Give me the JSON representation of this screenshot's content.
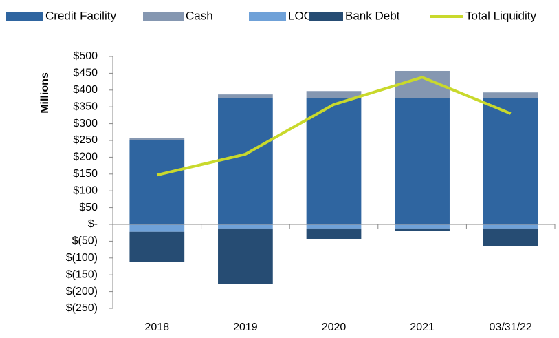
{
  "chart_data": {
    "type": "bar",
    "y_label": "Millions",
    "categories": [
      "2018",
      "2019",
      "2020",
      "2021",
      "03/31/22"
    ],
    "series": [
      {
        "name": "Credit Facility",
        "type": "bar",
        "color": "#2f65a0",
        "values": [
          250,
          375,
          375,
          375,
          375
        ]
      },
      {
        "name": "Cash",
        "type": "bar",
        "color": "#8597b1",
        "values": [
          7,
          12,
          22,
          82,
          18
        ]
      },
      {
        "name": "LOC",
        "type": "bar",
        "color": "#6fa1d8",
        "values": [
          -22,
          -12,
          -12,
          -12,
          -12
        ]
      },
      {
        "name": "Bank Debt",
        "type": "bar",
        "color": "#264c73",
        "values": [
          -90,
          -166,
          -31,
          -8,
          -52
        ]
      },
      {
        "name": "Total Liquidity",
        "type": "line",
        "color": "#c9d92c",
        "values": [
          147,
          209,
          357,
          438,
          330
        ]
      }
    ],
    "ylim": [
      -250,
      500
    ],
    "yticks": [
      {
        "value": -250,
        "label": "$(250)"
      },
      {
        "value": -200,
        "label": "$(200)"
      },
      {
        "value": -150,
        "label": "$(150)"
      },
      {
        "value": -100,
        "label": "$(100)"
      },
      {
        "value": -50,
        "label": "$(50)"
      },
      {
        "value": 0,
        "label": "$-"
      },
      {
        "value": 50,
        "label": "$50"
      },
      {
        "value": 100,
        "label": "$100"
      },
      {
        "value": 150,
        "label": "$150"
      },
      {
        "value": 200,
        "label": "$200"
      },
      {
        "value": 250,
        "label": "$250"
      },
      {
        "value": 300,
        "label": "$300"
      },
      {
        "value": 350,
        "label": "$350"
      },
      {
        "value": 400,
        "label": "$400"
      },
      {
        "value": 450,
        "label": "$450"
      },
      {
        "value": 500,
        "label": "$500"
      }
    ],
    "legend": "top"
  }
}
